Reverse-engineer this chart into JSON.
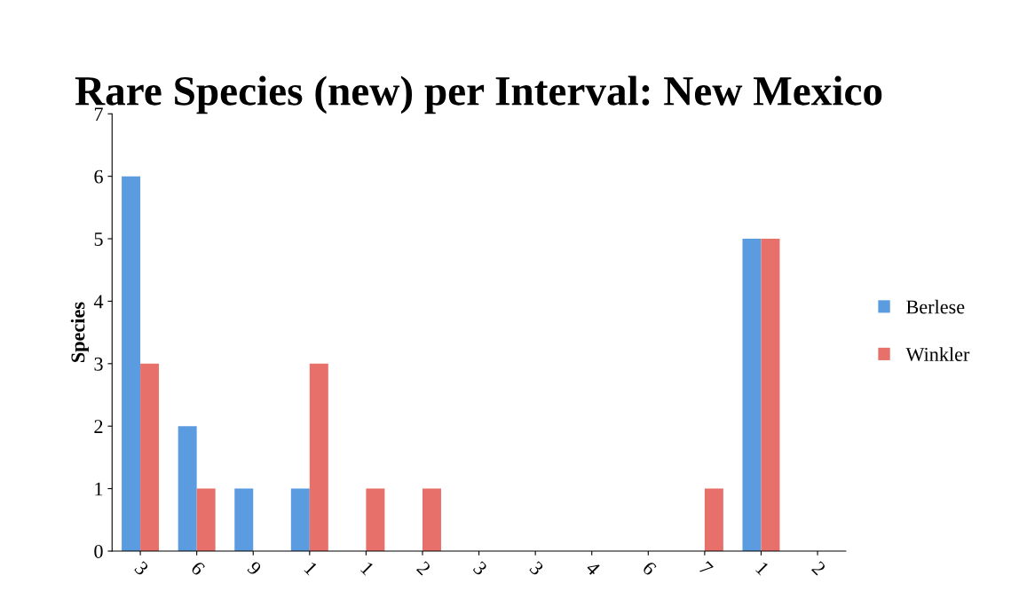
{
  "chart_data": {
    "type": "bar",
    "title": "Rare Species (new) per Interval: New Mexico",
    "ylabel": "Species",
    "categories": [
      "3",
      "6",
      "9",
      "1",
      "1",
      "2",
      "3",
      "3",
      "4",
      "6",
      "7",
      "1",
      "2"
    ],
    "series": [
      {
        "name": "Berlese",
        "color": "#5b9be0",
        "values": [
          6,
          2,
          1,
          1,
          0,
          0,
          0,
          0,
          0,
          0,
          0,
          5,
          0
        ]
      },
      {
        "name": "Winkler",
        "color": "#e8706a",
        "values": [
          3,
          1,
          0,
          3,
          1,
          1,
          0,
          0,
          0,
          0,
          1,
          5,
          0
        ]
      }
    ],
    "ylim": [
      0,
      7
    ],
    "yticks": [
      0,
      1,
      2,
      3,
      4,
      5,
      6,
      7
    ],
    "grid": false,
    "legend": "right"
  }
}
